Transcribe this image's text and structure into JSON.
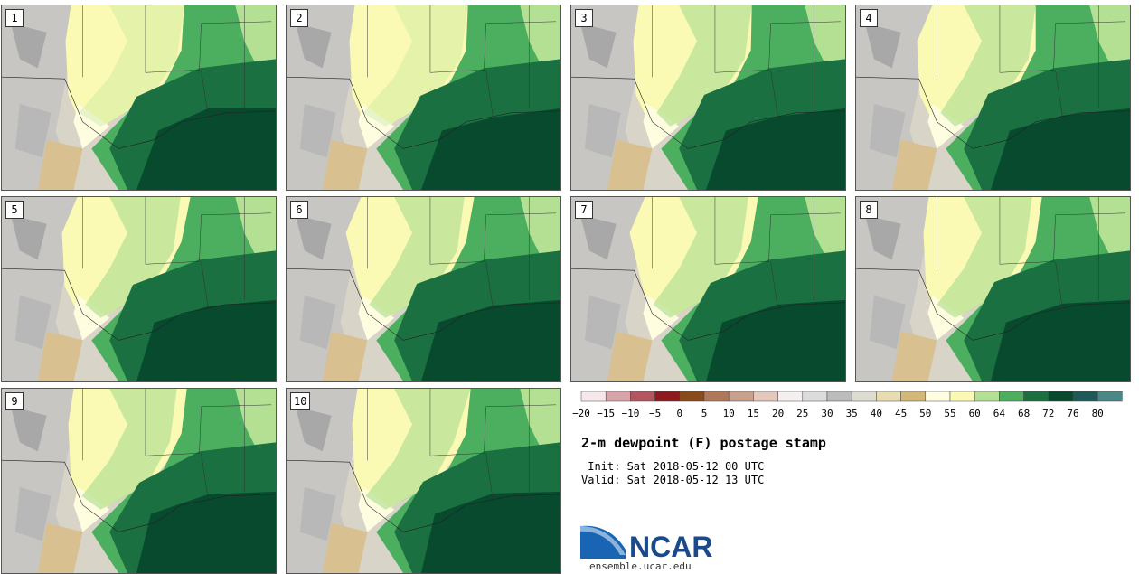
{
  "panels": [
    {
      "label": "1"
    },
    {
      "label": "2"
    },
    {
      "label": "3"
    },
    {
      "label": "4"
    },
    {
      "label": "5"
    },
    {
      "label": "6"
    },
    {
      "label": "7"
    },
    {
      "label": "8"
    },
    {
      "label": "9"
    },
    {
      "label": "10"
    }
  ],
  "colorbar": {
    "ticks": [
      "−20",
      "−15",
      "−10",
      "−5",
      "0",
      "5",
      "10",
      "15",
      "20",
      "25",
      "30",
      "35",
      "40",
      "45",
      "50",
      "55",
      "60",
      "64",
      "68",
      "72",
      "76",
      "80"
    ],
    "colors": [
      "#f6e8ea",
      "#d8a4aa",
      "#b4565f",
      "#8c1a1e",
      "#8a4a1a",
      "#b07858",
      "#c8a08c",
      "#e4c8bc",
      "#f4f0f0",
      "#dcdcdc",
      "#bcbcbc",
      "#dcdcd0",
      "#e8dcb0",
      "#d4b878",
      "#fefde0",
      "#fafab4",
      "#b4e094",
      "#4caf60",
      "#1a7040",
      "#084a2e",
      "#1e5a5a",
      "#4a8888"
    ]
  },
  "title": "2-m dewpoint (F) postage stamp",
  "init": " Init: Sat 2018-05-12 00 UTC",
  "valid": "Valid: Sat 2018-05-12 13 UTC",
  "logo": {
    "text": "NCAR",
    "url": "ensemble.ucar.edu"
  }
}
